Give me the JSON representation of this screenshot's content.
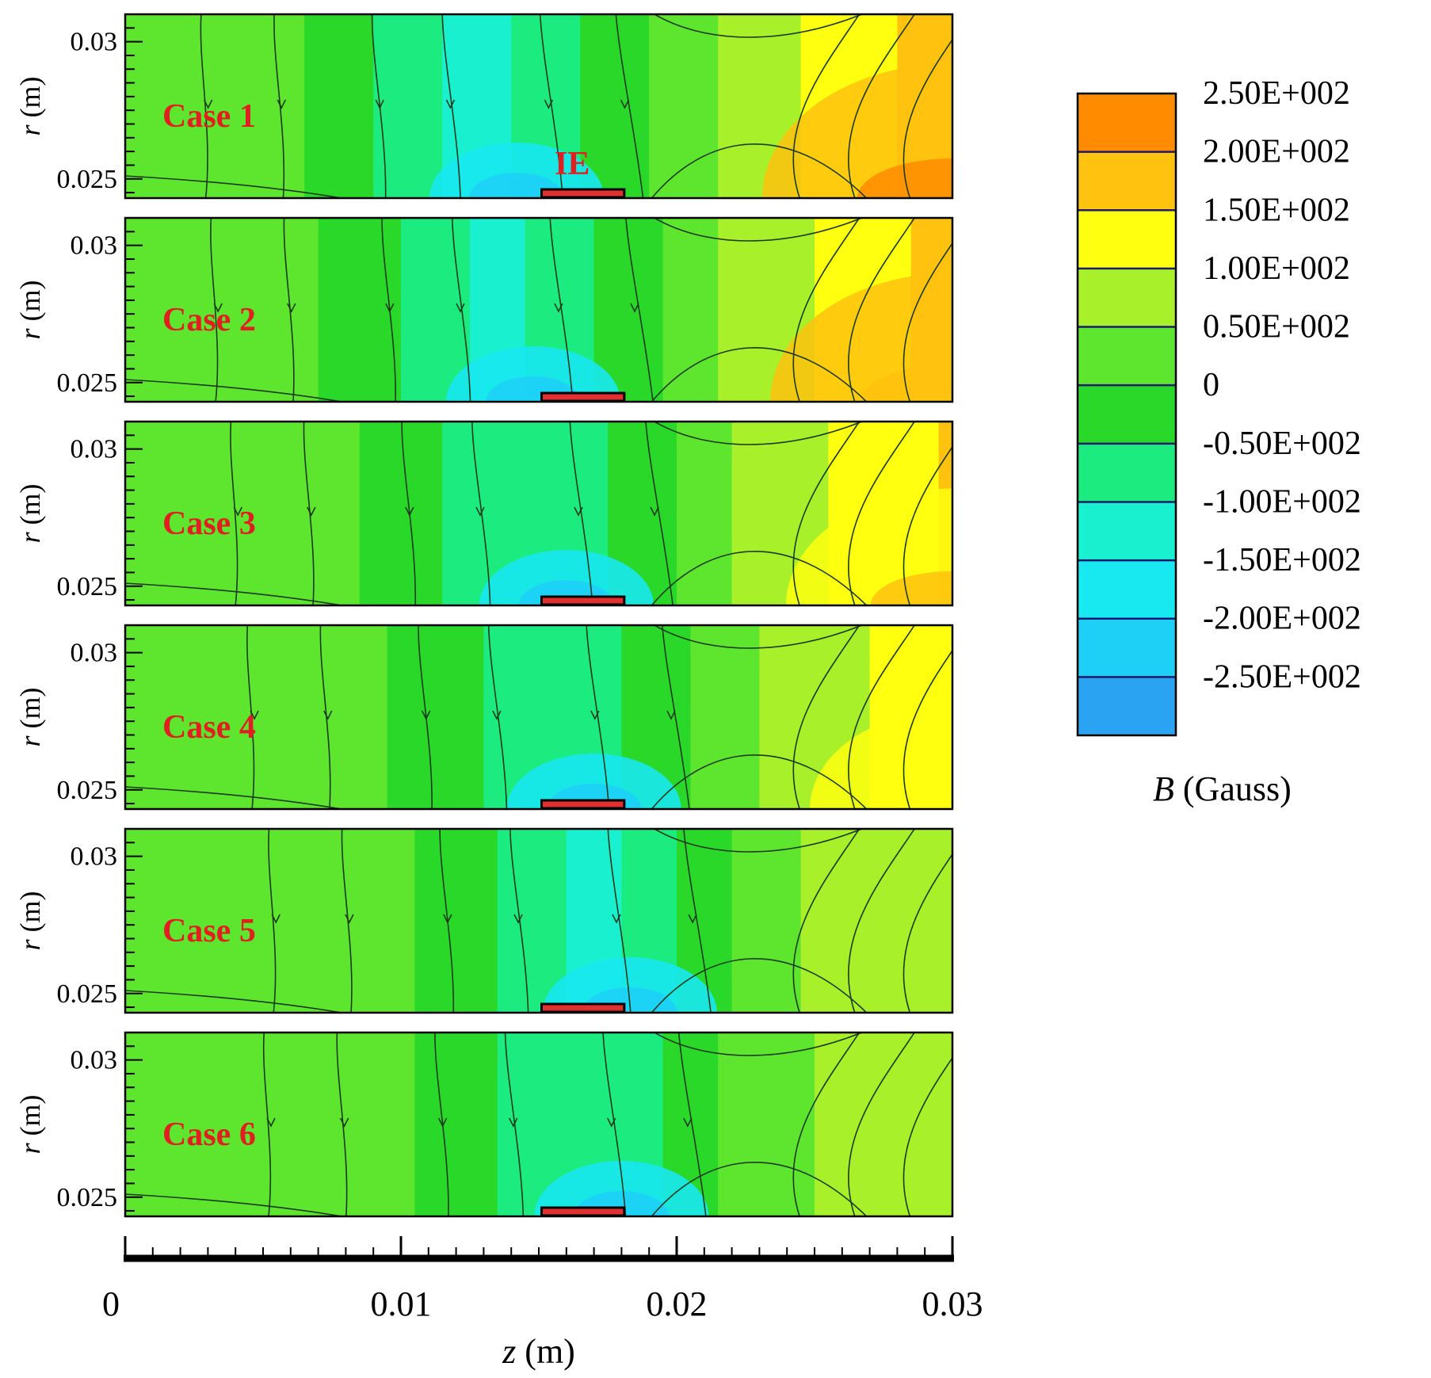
{
  "chart_data": {
    "type": "heatmap",
    "x": {
      "label": "z",
      "unit": "(m)",
      "range": [
        0,
        0.03
      ],
      "ticks": [
        "0",
        "0.01",
        "0.02",
        "0.03"
      ]
    },
    "y": {
      "label": "r",
      "unit": "(m)",
      "range": [
        0.0243,
        0.031
      ],
      "ticks": [
        "0.025",
        "0.03"
      ]
    },
    "electrode": {
      "label": "IE",
      "z_range": [
        0.0151,
        0.0181
      ],
      "color": "#e03030"
    },
    "colorbar": {
      "title_symbol": "B",
      "title_unit": "(Gauss)",
      "labels": [
        "2.50E+002",
        "2.00E+002",
        "1.50E+002",
        "1.00E+002",
        "0.50E+002",
        "0",
        "-0.50E+002",
        "-1.00E+002",
        "-1.50E+002",
        "-2.00E+002",
        "-2.50E+002"
      ],
      "colors": [
        "#ff8c00",
        "#ffc20e",
        "#ffff10",
        "#a8f02a",
        "#5ee62e",
        "#2ad82a",
        "#1cec80",
        "#18f0d0",
        "#18e8f0",
        "#1ed0f6",
        "#2aa4f2"
      ]
    },
    "cases": [
      {
        "name": "Case 1",
        "cold_center": 0.0127,
        "cold_depth": 1.0,
        "warm_strength": 1.0
      },
      {
        "name": "Case 2",
        "cold_center": 0.0133,
        "cold_depth": 0.95,
        "warm_strength": 0.95
      },
      {
        "name": "Case 3",
        "cold_center": 0.0145,
        "cold_depth": 0.85,
        "warm_strength": 0.85
      },
      {
        "name": "Case 4",
        "cold_center": 0.0155,
        "cold_depth": 0.75,
        "warm_strength": 0.7
      },
      {
        "name": "Case 5",
        "cold_center": 0.0168,
        "cold_depth": 0.95,
        "warm_strength": 0.45
      },
      {
        "name": "Case 6",
        "cold_center": 0.0165,
        "cold_depth": 0.85,
        "warm_strength": 0.4
      }
    ]
  }
}
